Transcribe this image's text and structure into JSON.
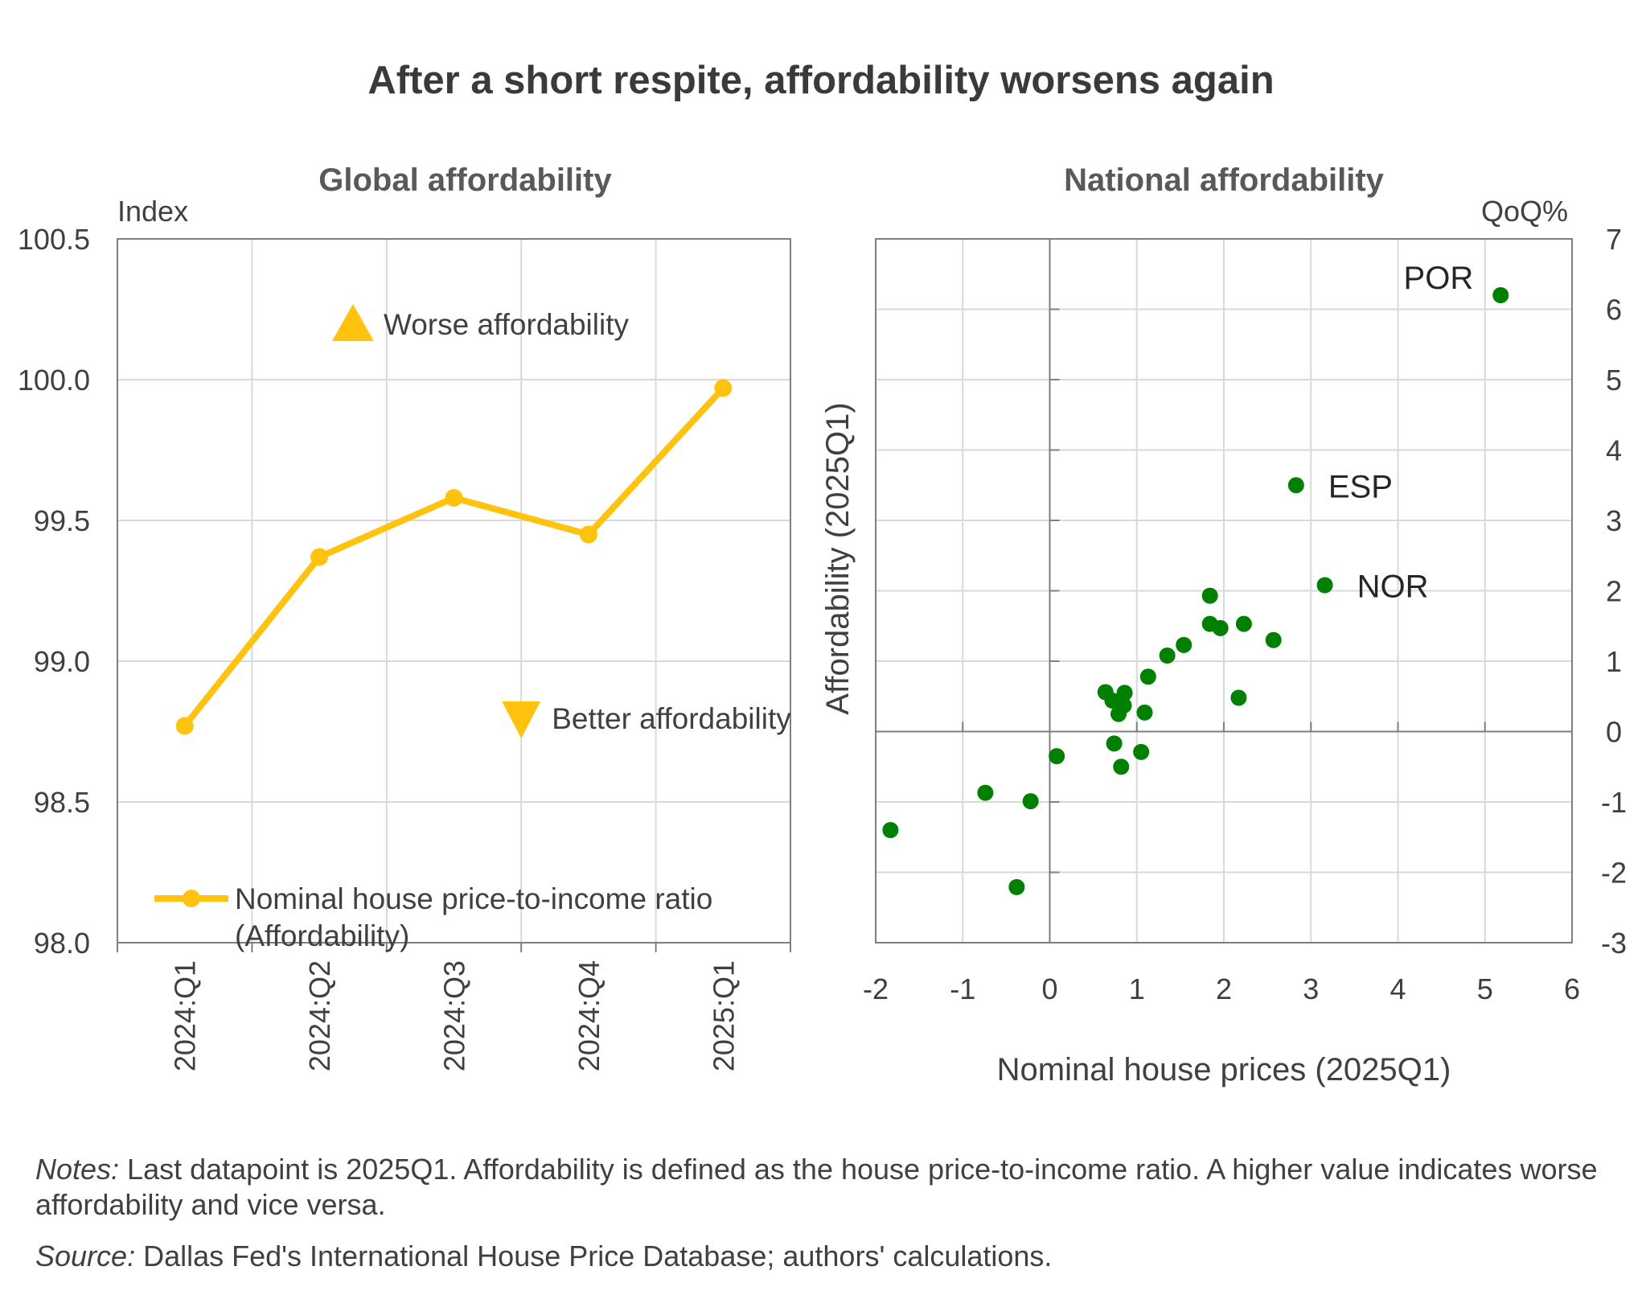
{
  "title": "After a short respite, affordability worsens again",
  "colors": {
    "line": "#FFC20E",
    "scatter": "#008000",
    "grid": "#d9d9d9",
    "axis": "#7f7f7f",
    "text": "#404040"
  },
  "chart_data": [
    {
      "type": "line",
      "title": "Global affordability",
      "ylabel": "Index",
      "ylim": [
        98.0,
        100.5
      ],
      "yticks": [
        "98.0",
        "98.5",
        "99.0",
        "99.5",
        "100.0",
        "100.5"
      ],
      "categories": [
        "2024:Q1",
        "2024:Q2",
        "2024:Q3",
        "2024:Q4",
        "2025:Q1"
      ],
      "series": [
        {
          "name": "Nominal house price-to-income ratio (Affordability)",
          "legend_lines": [
            "Nominal house price-to-income ratio",
            "(Affordability)"
          ],
          "values": [
            98.77,
            99.37,
            99.58,
            99.45,
            99.97
          ]
        }
      ],
      "annotations": [
        {
          "text": "Worse affordability",
          "marker": "triangle-up",
          "x": 1.25,
          "y": 100.2
        },
        {
          "text": "Better affordability",
          "marker": "triangle-down",
          "x": 2.5,
          "y": 98.8
        }
      ],
      "grid": true,
      "legend_position": "bottom-left"
    },
    {
      "type": "scatter",
      "title": "National affordability",
      "xlabel": "Nominal house prices (2025Q1)",
      "ylabel": "Affordability (2025Q1)",
      "yunit": "QoQ%",
      "xlim": [
        -2,
        6
      ],
      "ylim": [
        -3,
        7
      ],
      "xticks": [
        "-2",
        "-1",
        "0",
        "1",
        "2",
        "3",
        "4",
        "5",
        "6"
      ],
      "yticks": [
        "-3",
        "-2",
        "-1",
        "0",
        "1",
        "2",
        "3",
        "4",
        "5",
        "6",
        "7"
      ],
      "grid": true,
      "points": [
        {
          "x": 5.18,
          "y": 6.2,
          "label": "POR"
        },
        {
          "x": 2.83,
          "y": 3.5,
          "label": "ESP"
        },
        {
          "x": 3.16,
          "y": 2.08,
          "label": "NOR"
        },
        {
          "x": 1.84,
          "y": 1.93
        },
        {
          "x": 1.84,
          "y": 1.53
        },
        {
          "x": 1.96,
          "y": 1.47
        },
        {
          "x": 2.23,
          "y": 1.53
        },
        {
          "x": 2.57,
          "y": 1.3
        },
        {
          "x": 1.54,
          "y": 1.23
        },
        {
          "x": 1.35,
          "y": 1.08
        },
        {
          "x": 1.13,
          "y": 0.78
        },
        {
          "x": 0.64,
          "y": 0.56
        },
        {
          "x": 0.72,
          "y": 0.44
        },
        {
          "x": 0.86,
          "y": 0.55
        },
        {
          "x": 0.85,
          "y": 0.37
        },
        {
          "x": 0.79,
          "y": 0.25
        },
        {
          "x": 1.09,
          "y": 0.27
        },
        {
          "x": 2.17,
          "y": 0.48
        },
        {
          "x": 0.08,
          "y": -0.35
        },
        {
          "x": 0.74,
          "y": -0.17
        },
        {
          "x": 1.05,
          "y": -0.29
        },
        {
          "x": 0.82,
          "y": -0.5
        },
        {
          "x": -0.74,
          "y": -0.87
        },
        {
          "x": -0.22,
          "y": -0.99
        },
        {
          "x": -1.83,
          "y": -1.4
        },
        {
          "x": -0.38,
          "y": -2.21
        }
      ]
    }
  ],
  "notes": {
    "notes_label": "Notes:",
    "notes_text": " Last datapoint is 2025Q1. Affordability is defined as the house price-to-income ratio. A higher value indicates worse affordability and vice versa.",
    "source_label": "Source:",
    "source_text": " Dallas Fed's International House Price Database; authors' calculations."
  }
}
